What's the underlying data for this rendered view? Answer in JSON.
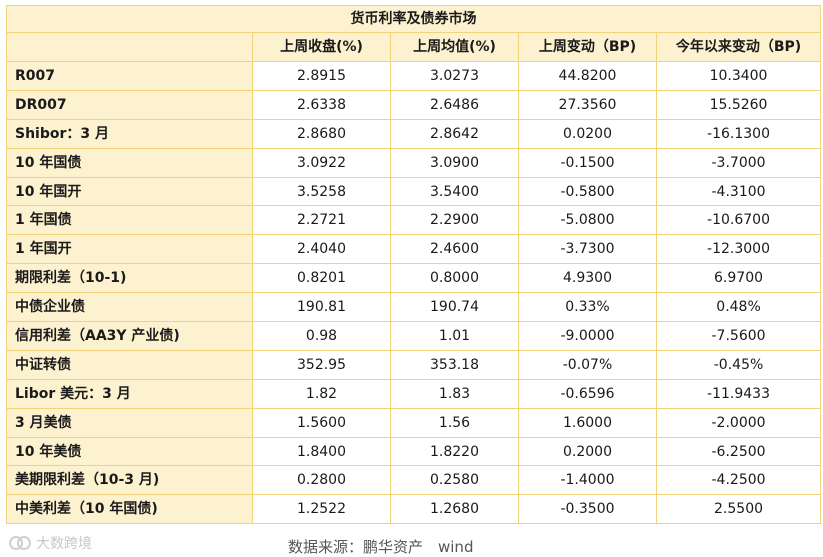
{
  "table": {
    "title": "货币利率及债券市场",
    "headers": [
      "",
      "上周收盘(%)",
      "上周均值(%)",
      "上周变动（BP)",
      "今年以来变动（BP)"
    ],
    "rows": [
      {
        "label": "R007",
        "close": "2.8915",
        "avg": "3.0273",
        "wchg": "44.8200",
        "ytd": "10.3400"
      },
      {
        "label": "DR007",
        "close": "2.6338",
        "avg": "2.6486",
        "wchg": "27.3560",
        "ytd": "15.5260"
      },
      {
        "label": "Shibor：3 月",
        "close": "2.8680",
        "avg": "2.8642",
        "wchg": "0.0200",
        "ytd": "-16.1300"
      },
      {
        "label": "10 年国债",
        "close": "3.0922",
        "avg": "3.0900",
        "wchg": "-0.1500",
        "ytd": "-3.7000"
      },
      {
        "label": "10 年国开",
        "close": "3.5258",
        "avg": "3.5400",
        "wchg": "-0.5800",
        "ytd": "-4.3100"
      },
      {
        "label": "1 年国债",
        "close": "2.2721",
        "avg": "2.2900",
        "wchg": "-5.0800",
        "ytd": "-10.6700"
      },
      {
        "label": "1 年国开",
        "close": "2.4040",
        "avg": "2.4600",
        "wchg": "-3.7300",
        "ytd": "-12.3000"
      },
      {
        "label": "期限利差（10-1)",
        "close": "0.8201",
        "avg": "0.8000",
        "wchg": "4.9300",
        "ytd": "6.9700"
      },
      {
        "label": "中债企业债",
        "close": "190.81",
        "avg": "190.74",
        "wchg": "0.33%",
        "ytd": "0.48%"
      },
      {
        "label": "信用利差（AA3Y 产业债)",
        "close": "0.98",
        "avg": "1.01",
        "wchg": "-9.0000",
        "ytd": "-7.5600"
      },
      {
        "label": "中证转债",
        "close": "352.95",
        "avg": "353.18",
        "wchg": "-0.07%",
        "ytd": "-0.45%"
      },
      {
        "label": "Libor 美元：3 月",
        "close": "1.82",
        "avg": "1.83",
        "wchg": "-0.6596",
        "ytd": "-11.9433"
      },
      {
        "label": "3 月美债",
        "close": "1.5600",
        "avg": "1.56",
        "wchg": "1.6000",
        "ytd": "-2.0000"
      },
      {
        "label": "10 年美债",
        "close": "1.8400",
        "avg": "1.8220",
        "wchg": "0.2000",
        "ytd": "-6.2500"
      },
      {
        "label": "美期限利差（10-3 月)",
        "close": "0.2800",
        "avg": "0.2580",
        "wchg": "-1.4000",
        "ytd": "-4.2500"
      },
      {
        "label": "中美利差（10 年国债)",
        "close": "1.2522",
        "avg": "1.2680",
        "wchg": "-0.3500",
        "ytd": "2.5500"
      }
    ]
  },
  "source": "数据来源：鹏华资产　wind",
  "watermark": {
    "text": "大数跨境",
    "icon": "brand-logo-icon"
  },
  "colors": {
    "header_bg": "#fdf2cf",
    "border": "#f2d27a"
  }
}
